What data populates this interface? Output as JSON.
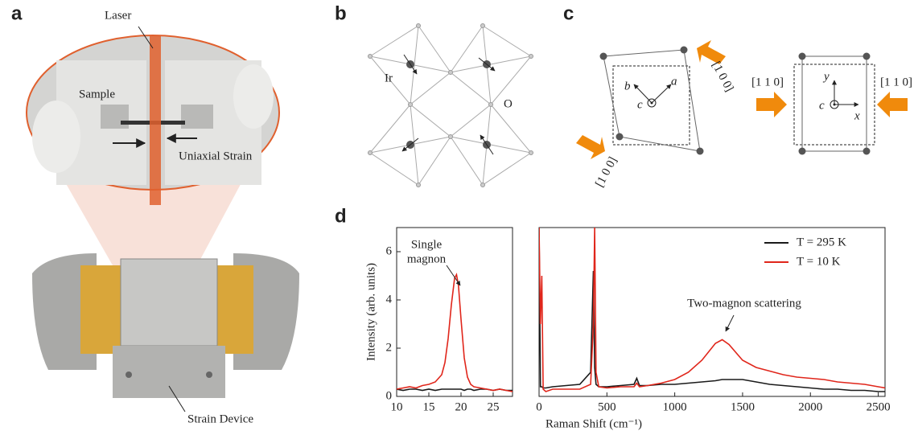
{
  "panels": {
    "a": {
      "label": "a",
      "laser": "Laser",
      "sample": "Sample",
      "strain": "Uniaxial Strain",
      "device": "Strain Device"
    },
    "b": {
      "label": "b",
      "ir": "Ir",
      "o": "O"
    },
    "c": {
      "label": "c",
      "dir1": "[1 0 0]",
      "dir2": "[1 0 0]",
      "axis_a": "a",
      "axis_b": "b",
      "axis_c": "c",
      "dir3": "[1 1 0]",
      "dir4": "[1 1 0]",
      "axis_y": "y",
      "axis_c2": "c",
      "axis_x": "x"
    },
    "d": {
      "label": "d"
    }
  },
  "chart_data": [
    {
      "type": "line",
      "ylabel": "Intensity (arb. units)",
      "annotation": [
        "Single",
        "magnon"
      ],
      "xlim": [
        10,
        28
      ],
      "xticks": [
        10,
        15,
        20,
        25
      ],
      "ylim": [
        0,
        7
      ],
      "yticks": [
        0,
        2,
        4,
        6
      ],
      "x": [
        10,
        11,
        12,
        13,
        14,
        15,
        16,
        17,
        17.5,
        18,
        18.5,
        19,
        19.3,
        19.6,
        20,
        20.5,
        21,
        21.5,
        22,
        23,
        24,
        25,
        26,
        27,
        28
      ],
      "series": [
        {
          "name": "T = 295 K",
          "color": "#1a1a1a",
          "values": [
            0.3,
            0.25,
            0.3,
            0.3,
            0.25,
            0.3,
            0.25,
            0.3,
            0.3,
            0.3,
            0.3,
            0.3,
            0.3,
            0.3,
            0.3,
            0.25,
            0.3,
            0.3,
            0.25,
            0.3,
            0.3,
            0.25,
            0.3,
            0.25,
            0.25
          ]
        },
        {
          "name": "T = 10 K",
          "color": "#e0261b",
          "values": [
            0.3,
            0.35,
            0.4,
            0.35,
            0.45,
            0.5,
            0.6,
            0.9,
            1.4,
            2.4,
            3.8,
            4.9,
            5.05,
            4.6,
            3.2,
            1.6,
            0.8,
            0.5,
            0.4,
            0.35,
            0.3,
            0.25,
            0.3,
            0.25,
            0.2
          ]
        }
      ]
    },
    {
      "type": "line",
      "xlabel": "Raman Shift (cm⁻¹)",
      "annotation": "Two-magnon scattering",
      "legend": "upper right",
      "xlim": [
        0,
        2550
      ],
      "xticks": [
        0,
        500,
        1000,
        1500,
        2000,
        2500
      ],
      "ylim": [
        0,
        7
      ],
      "x": [
        0,
        10,
        20,
        30,
        50,
        100,
        200,
        300,
        380,
        400,
        410,
        420,
        440,
        500,
        600,
        700,
        720,
        740,
        800,
        900,
        1000,
        1100,
        1200,
        1300,
        1350,
        1400,
        1500,
        1600,
        1700,
        1800,
        1900,
        2000,
        2100,
        2200,
        2300,
        2400,
        2500,
        2550
      ],
      "series": [
        {
          "name": "T = 295 K",
          "color": "#1a1a1a",
          "values": [
            7,
            0.4,
            0.4,
            0.35,
            0.35,
            0.4,
            0.45,
            0.5,
            1.0,
            5.2,
            1.2,
            0.5,
            0.4,
            0.4,
            0.45,
            0.5,
            0.75,
            0.45,
            0.45,
            0.5,
            0.5,
            0.55,
            0.6,
            0.65,
            0.7,
            0.7,
            0.7,
            0.6,
            0.5,
            0.45,
            0.4,
            0.35,
            0.3,
            0.3,
            0.25,
            0.25,
            0.2,
            0.2
          ]
        },
        {
          "name": "T = 10 K",
          "color": "#e0261b",
          "values": [
            7,
            3,
            5,
            0.3,
            0.2,
            0.3,
            0.3,
            0.3,
            0.5,
            3,
            7,
            1,
            0.4,
            0.35,
            0.4,
            0.4,
            0.55,
            0.4,
            0.45,
            0.55,
            0.7,
            1.0,
            1.5,
            2.2,
            2.35,
            2.15,
            1.5,
            1.2,
            1.05,
            0.9,
            0.8,
            0.75,
            0.7,
            0.6,
            0.55,
            0.5,
            0.4,
            0.35
          ]
        }
      ]
    }
  ]
}
